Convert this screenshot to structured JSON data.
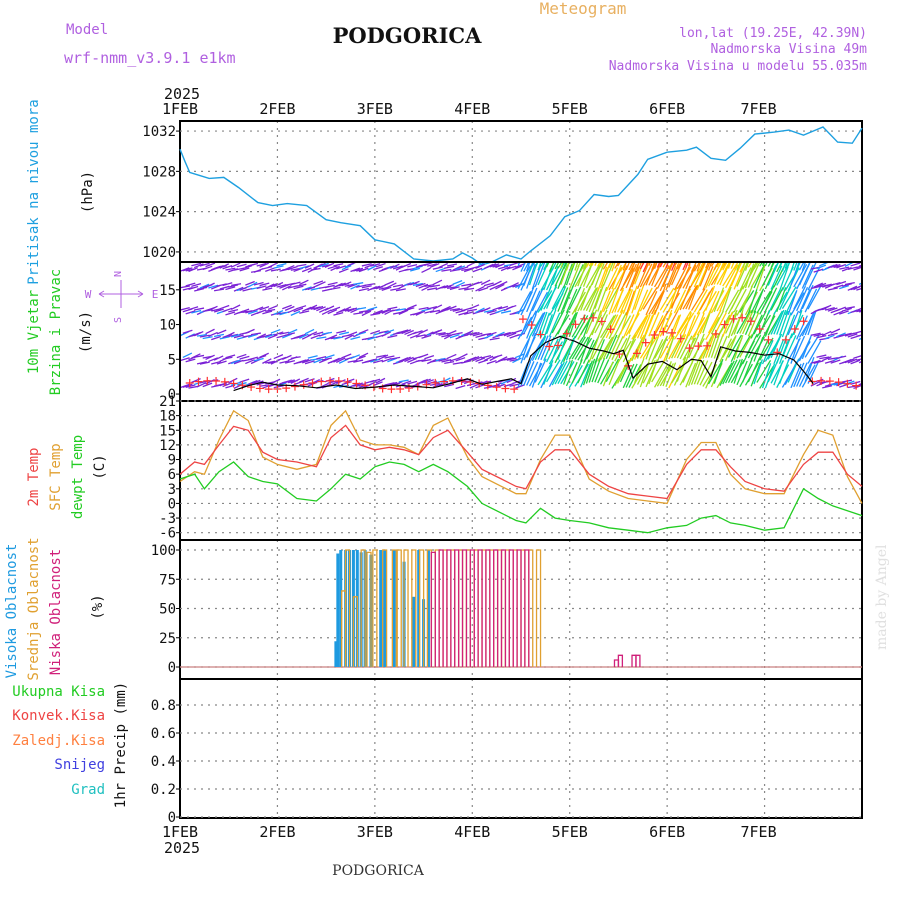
{
  "header": {
    "model_label": "Model",
    "model_name": "wrf-nmm_v3.9.1  e1km",
    "station": "PODGORICA",
    "meteogram": "Meteogram",
    "coords": "lon,lat (19.25E, 42.39N)",
    "elevation": "Nadmorska Visina 49m",
    "model_elevation": "Nadmorska Visina u modelu 55.035m",
    "footer_station": "PODGORICA",
    "credit": "made by Angel"
  },
  "colors": {
    "pressure": "#1ea0e0",
    "wind_speed": "#000000",
    "wind_gust": "#ff3030",
    "t2m": "#ee4444",
    "tsfc": "#e0a030",
    "dewpt": "#22cc22",
    "cloud_high": "#1e9ae0",
    "cloud_mid": "#e0a030",
    "cloud_low": "#d0207a",
    "grid": "#888888",
    "model": "#b060e0",
    "title_orange": "#e8b060"
  },
  "chart_data": [
    {
      "type": "line",
      "panel": "pressure",
      "ylabel_outer": "Pritisak na nivou mora",
      "ylabel_inner": "(hPa)",
      "x_labels": [
        "1FEB",
        "2FEB",
        "3FEB",
        "4FEB",
        "5FEB",
        "6FEB",
        "7FEB"
      ],
      "year": "2025",
      "yticks": [
        "1020",
        "1024",
        "1028",
        "1032"
      ],
      "ylim": [
        1019,
        1033
      ],
      "x": [
        0,
        0.05,
        0.1,
        0.2,
        0.3,
        0.45,
        0.6,
        0.8,
        0.95,
        1.1,
        1.3,
        1.5,
        1.65,
        1.85,
        2.0,
        2.2,
        2.4,
        2.6,
        2.8,
        2.9,
        3.0,
        3.1,
        3.2,
        3.35,
        3.5,
        3.6,
        3.8,
        3.95,
        4.1,
        4.25,
        4.4,
        4.5,
        4.7,
        4.8,
        5.0,
        5.2,
        5.3,
        5.45,
        5.6,
        5.75,
        5.9,
        6.1,
        6.25,
        6.4,
        6.6,
        6.75,
        6.9,
        7.0
      ],
      "series": [
        {
          "values": [
            1030.2,
            1029.0,
            1027.9,
            1027.6,
            1027.3,
            1027.4,
            1026.4,
            1024.9,
            1024.6,
            1024.8,
            1024.6,
            1023.2,
            1022.9,
            1022.6,
            1021.2,
            1020.8,
            1019.3,
            1019.1,
            1019.3,
            1019.9,
            1019.4,
            1018.7,
            1019.0,
            1019.7,
            1019.3,
            1020.1,
            1021.6,
            1023.5,
            1024.1,
            1025.7,
            1025.5,
            1025.6,
            1027.7,
            1029.2,
            1029.9,
            1030.1,
            1030.4,
            1029.3,
            1029.1,
            1030.3,
            1031.7,
            1031.9,
            1032.1,
            1031.6,
            1032.4,
            1030.9,
            1030.8,
            1032.3
          ]
        }
      ]
    },
    {
      "type": "line",
      "panel": "wind",
      "ylabel_outer": [
        "10m Vjetar",
        "Brzina i Pravac"
      ],
      "ylabel_inner": "(m/s)",
      "compass": [
        "N",
        "S",
        "E",
        "W"
      ],
      "yticks": [
        "0",
        "5",
        "10",
        "15"
      ],
      "ylim": [
        -1,
        19
      ],
      "x": [
        0.55,
        0.7,
        0.85,
        1.0,
        1.2,
        1.4,
        1.6,
        1.8,
        2.0,
        2.2,
        2.4,
        2.6,
        2.8,
        2.95,
        3.1,
        3.25,
        3.4,
        3.5,
        3.6,
        3.75,
        3.9,
        4.05,
        4.2,
        4.35,
        4.45,
        4.55,
        4.65,
        4.8,
        4.95,
        5.1,
        5.25,
        5.35,
        5.45,
        5.55,
        5.7,
        5.85,
        6.0,
        6.15,
        6.3,
        6.4,
        6.5
      ],
      "series": [
        {
          "name": "speed",
          "values": [
            0.5,
            1.2,
            1.7,
            1.3,
            1.2,
            0.9,
            1.3,
            0.8,
            1.0,
            1.3,
            1.1,
            0.9,
            1.6,
            2.2,
            1.4,
            1.8,
            2.2,
            1.5,
            5.5,
            7.4,
            8.3,
            7.6,
            6.6,
            6.2,
            5.8,
            6.3,
            2.3,
            4.3,
            4.7,
            3.5,
            5.0,
            4.8,
            2.5,
            6.8,
            6.2,
            6.0,
            5.6,
            5.8,
            4.9,
            3.3,
            1.5
          ]
        }
      ],
      "arrow_colors": [
        "#7b22d6",
        "#1e90ff",
        "#00d0c0",
        "#20d040",
        "#a0e020",
        "#ffd000",
        "#ff8c00",
        "#ff3030"
      ]
    },
    {
      "type": "line",
      "panel": "temperature",
      "ylabel_outer": [
        "2m Temp",
        "SFC Temp",
        "dewpt Temp"
      ],
      "ylabel_inner": "(C)",
      "yticks": [
        "-6",
        "-3",
        "0",
        "3",
        "6",
        "9",
        "12",
        "15",
        "18",
        "21"
      ],
      "ylim": [
        -7.5,
        21
      ],
      "x": [
        0,
        0.15,
        0.25,
        0.4,
        0.55,
        0.7,
        0.85,
        1.0,
        1.2,
        1.4,
        1.55,
        1.7,
        1.85,
        2.0,
        2.15,
        2.3,
        2.45,
        2.6,
        2.75,
        2.95,
        3.1,
        3.3,
        3.45,
        3.55,
        3.7,
        3.85,
        4.0,
        4.2,
        4.4,
        4.6,
        4.8,
        5.0,
        5.2,
        5.35,
        5.5,
        5.65,
        5.8,
        6.0,
        6.2,
        6.4,
        6.55,
        6.7,
        6.85,
        7.0
      ],
      "series": [
        {
          "name": "2m Temp",
          "values": [
            6.0,
            8.5,
            8.0,
            12.0,
            15.8,
            15.0,
            10.5,
            9.0,
            8.5,
            7.5,
            13.5,
            16.0,
            12.0,
            11.0,
            11.5,
            11.0,
            10.0,
            13.5,
            15.0,
            10.5,
            7.0,
            5.0,
            3.5,
            3.0,
            8.5,
            11.0,
            11.0,
            6.0,
            3.5,
            2.0,
            1.5,
            1.0,
            8.0,
            11.0,
            11.0,
            7.5,
            4.5,
            3.0,
            2.5,
            8.0,
            10.5,
            10.5,
            6.0,
            3.5
          ]
        },
        {
          "name": "SFC Temp",
          "values": [
            4.5,
            6.5,
            6.0,
            13.0,
            19.0,
            17.0,
            9.5,
            8.0,
            7.0,
            8.0,
            16.0,
            19.0,
            13.0,
            12.0,
            12.0,
            11.5,
            10.0,
            16.0,
            17.5,
            9.5,
            5.5,
            3.5,
            2.0,
            2.0,
            9.0,
            14.0,
            14.0,
            5.0,
            2.5,
            1.0,
            0.5,
            0.0,
            9.0,
            12.5,
            12.5,
            6.0,
            3.0,
            2.0,
            2.0,
            10.0,
            15.0,
            14.0,
            5.5,
            0.0
          ]
        },
        {
          "name": "dewpt Temp",
          "values": [
            5.0,
            6.0,
            3.0,
            6.5,
            8.5,
            5.5,
            4.5,
            4.0,
            1.0,
            0.5,
            3.0,
            6.0,
            5.0,
            7.5,
            8.5,
            8.0,
            6.5,
            8.0,
            6.5,
            3.5,
            0.0,
            -2.0,
            -3.5,
            -4.0,
            -1.0,
            -3.0,
            -3.5,
            -4.0,
            -5.0,
            -5.5,
            -6.0,
            -5.0,
            -4.5,
            -3.0,
            -2.5,
            -4.0,
            -4.5,
            -5.5,
            -5.0,
            3.0,
            1.0,
            -0.5,
            -1.5,
            -2.5
          ]
        }
      ]
    },
    {
      "type": "bar",
      "panel": "cloud",
      "ylabel_outer": [
        "Visoka Oblacnost",
        "Srednja Oblacnost",
        "Niska Oblacnost"
      ],
      "ylabel_inner": "(%)",
      "yticks": [
        "0",
        "25",
        "50",
        "75",
        "100"
      ],
      "ylim": [
        0,
        100
      ],
      "series": [
        {
          "name": "Visoka Oblacnost",
          "x": [
            1.6,
            1.62,
            1.65,
            1.7,
            1.74,
            1.78,
            1.82,
            1.86,
            1.9,
            1.96,
            2.06,
            2.1,
            2.2,
            2.3,
            2.4,
            2.45,
            2.5,
            2.55
          ],
          "values": [
            22,
            97,
            100,
            100,
            100,
            100,
            100,
            98,
            100,
            96,
            100,
            100,
            100,
            90,
            60,
            100,
            58,
            100
          ]
        },
        {
          "name": "Srednja Oblacnost",
          "x": [
            1.68,
            1.72,
            1.8,
            1.88,
            1.94,
            2.0,
            2.1,
            2.2,
            2.25,
            2.32,
            2.4,
            2.48,
            2.56,
            2.64,
            2.72,
            2.8,
            2.88,
            2.96,
            3.04,
            3.12,
            3.2,
            3.28,
            3.36,
            3.44,
            3.52,
            3.6,
            3.68
          ],
          "values": [
            65,
            100,
            60,
            100,
            98,
            100,
            100,
            100,
            100,
            100,
            100,
            100,
            100,
            100,
            100,
            100,
            100,
            100,
            100,
            100,
            100,
            100,
            100,
            100,
            100,
            100,
            100
          ]
        },
        {
          "name": "Niska Oblacnost",
          "x": [
            2.6,
            2.68,
            2.76,
            2.84,
            2.92,
            3.0,
            3.08,
            3.16,
            3.24,
            3.32,
            3.4,
            3.48,
            3.56,
            4.48,
            4.52,
            4.66,
            4.7
          ],
          "values": [
            98,
            100,
            100,
            100,
            100,
            100,
            100,
            100,
            100,
            100,
            100,
            100,
            100,
            6,
            10,
            10,
            10
          ]
        }
      ]
    },
    {
      "type": "bar",
      "panel": "precip",
      "ylabel_outer": [
        "Ukupna Kisa",
        "Konvek.Kisa",
        "Zaledj.Kisa",
        "Snijeg",
        "Grad"
      ],
      "ylabel_inner": "1hr Precip (mm)",
      "yticks": [
        "0",
        "0.2",
        "0.4",
        "0.6",
        "0.8"
      ],
      "ylim": [
        0,
        1
      ],
      "x_labels": [
        "1FEB",
        "2FEB",
        "3FEB",
        "4FEB",
        "5FEB",
        "6FEB",
        "7FEB"
      ],
      "year": "2025",
      "series": []
    }
  ]
}
